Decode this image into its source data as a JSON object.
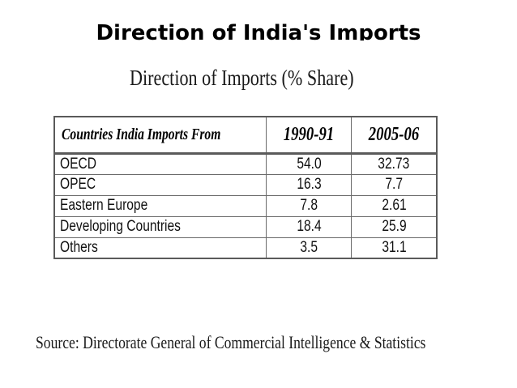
{
  "slide": {
    "title": "Direction of India's Imports"
  },
  "table": {
    "caption": "Direction of Imports (% Share)",
    "headers": [
      "Countries India Imports From",
      "1990-91",
      "2005-06"
    ],
    "rows": [
      [
        "OECD",
        "54.0",
        "32.73"
      ],
      [
        "OPEC",
        "16.3",
        "7.7"
      ],
      [
        "Eastern Europe",
        "7.8",
        "2.61"
      ],
      [
        "Developing Countries",
        "18.4",
        "25.9"
      ],
      [
        "Others",
        "3.5",
        "31.1"
      ]
    ]
  },
  "source": {
    "text": "Source: Directorate General of Commercial Intelligence & Statistics"
  }
}
